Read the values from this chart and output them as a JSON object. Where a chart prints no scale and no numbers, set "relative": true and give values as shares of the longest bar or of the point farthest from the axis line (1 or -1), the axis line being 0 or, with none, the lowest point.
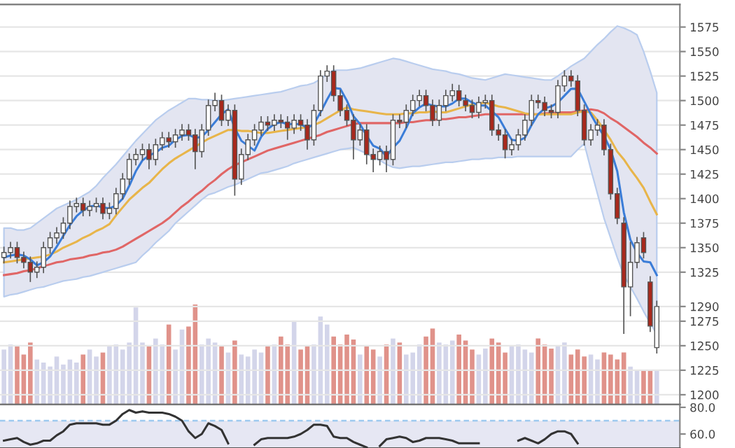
{
  "chart_data": [
    {
      "type": "candlestick",
      "categories": [
        null,
        null,
        null,
        null,
        null,
        null,
        null,
        null,
        null,
        null,
        null,
        null,
        null,
        null,
        null,
        null,
        null,
        null,
        null,
        null,
        null,
        null,
        null,
        null,
        null,
        null,
        null,
        null,
        null,
        null,
        null,
        null,
        null,
        null,
        null,
        null,
        null,
        null,
        null,
        null,
        null,
        null,
        null,
        null,
        null,
        null,
        null,
        null,
        null,
        null,
        null,
        null,
        null,
        null,
        null,
        null,
        null,
        null,
        null,
        null,
        null,
        null,
        null,
        null,
        null,
        null,
        null,
        null,
        null,
        null,
        null,
        null,
        null,
        null,
        null,
        null,
        null,
        null,
        null,
        null,
        null,
        null,
        null,
        null,
        null,
        null,
        null,
        null,
        null,
        null,
        null,
        null,
        null,
        null,
        null,
        null,
        null,
        null,
        null,
        null
      ],
      "ohlc": [
        [
          1340,
          1351,
          1334,
          1345
        ],
        [
          1345,
          1356,
          1339,
          1350
        ],
        [
          1350,
          1356,
          1334,
          1340
        ],
        [
          1340,
          1346,
          1329,
          1335
        ],
        [
          1335,
          1341,
          1315,
          1325
        ],
        [
          1325,
          1336,
          1319,
          1330
        ],
        [
          1330,
          1356,
          1324,
          1350
        ],
        [
          1350,
          1366,
          1344,
          1360
        ],
        [
          1360,
          1371,
          1354,
          1365
        ],
        [
          1365,
          1381,
          1359,
          1375
        ],
        [
          1375,
          1398,
          1369,
          1392
        ],
        [
          1392,
          1401,
          1386,
          1395
        ],
        [
          1395,
          1401,
          1382,
          1388
        ],
        [
          1388,
          1398,
          1382,
          1392
        ],
        [
          1392,
          1401,
          1386,
          1395
        ],
        [
          1395,
          1401,
          1379,
          1385
        ],
        [
          1385,
          1396,
          1379,
          1390
        ],
        [
          1390,
          1411,
          1384,
          1405
        ],
        [
          1405,
          1426,
          1399,
          1420
        ],
        [
          1420,
          1446,
          1414,
          1440
        ],
        [
          1440,
          1451,
          1434,
          1445
        ],
        [
          1445,
          1456,
          1439,
          1450
        ],
        [
          1450,
          1456,
          1430,
          1440
        ],
        [
          1440,
          1461,
          1434,
          1455
        ],
        [
          1455,
          1468,
          1449,
          1462
        ],
        [
          1462,
          1468,
          1452,
          1458
        ],
        [
          1458,
          1471,
          1452,
          1465
        ],
        [
          1465,
          1476,
          1459,
          1470
        ],
        [
          1470,
          1476,
          1459,
          1465
        ],
        [
          1465,
          1471,
          1430,
          1448
        ],
        [
          1448,
          1476,
          1442,
          1470
        ],
        [
          1470,
          1501,
          1464,
          1495
        ],
        [
          1495,
          1508,
          1489,
          1500
        ],
        [
          1500,
          1506,
          1474,
          1480
        ],
        [
          1480,
          1496,
          1474,
          1490
        ],
        [
          1490,
          1496,
          1403,
          1420
        ],
        [
          1420,
          1451,
          1414,
          1445
        ],
        [
          1445,
          1466,
          1439,
          1460
        ],
        [
          1460,
          1476,
          1454,
          1470
        ],
        [
          1470,
          1484,
          1464,
          1478
        ],
        [
          1478,
          1484,
          1469,
          1475
        ],
        [
          1475,
          1486,
          1469,
          1480
        ],
        [
          1480,
          1486,
          1472,
          1478
        ],
        [
          1478,
          1484,
          1460,
          1472
        ],
        [
          1472,
          1486,
          1466,
          1480
        ],
        [
          1480,
          1486,
          1469,
          1475
        ],
        [
          1475,
          1481,
          1450,
          1460
        ],
        [
          1460,
          1496,
          1454,
          1490
        ],
        [
          1490,
          1531,
          1484,
          1525
        ],
        [
          1525,
          1536,
          1519,
          1530
        ],
        [
          1530,
          1536,
          1499,
          1505
        ],
        [
          1505,
          1511,
          1484,
          1490
        ],
        [
          1490,
          1496,
          1474,
          1480
        ],
        [
          1480,
          1486,
          1440,
          1460
        ],
        [
          1460,
          1476,
          1454,
          1470
        ],
        [
          1470,
          1476,
          1435,
          1445
        ],
        [
          1445,
          1451,
          1427,
          1440
        ],
        [
          1440,
          1454,
          1434,
          1448
        ],
        [
          1448,
          1454,
          1427,
          1440
        ],
        [
          1440,
          1486,
          1434,
          1480
        ],
        [
          1480,
          1486,
          1472,
          1478
        ],
        [
          1478,
          1496,
          1472,
          1490
        ],
        [
          1490,
          1506,
          1484,
          1500
        ],
        [
          1500,
          1511,
          1494,
          1505
        ],
        [
          1505,
          1511,
          1489,
          1495
        ],
        [
          1495,
          1501,
          1474,
          1480
        ],
        [
          1480,
          1501,
          1474,
          1495
        ],
        [
          1495,
          1511,
          1489,
          1505
        ],
        [
          1505,
          1517,
          1499,
          1510
        ],
        [
          1510,
          1516,
          1494,
          1500
        ],
        [
          1500,
          1506,
          1489,
          1495
        ],
        [
          1495,
          1501,
          1482,
          1488
        ],
        [
          1488,
          1504,
          1482,
          1498
        ],
        [
          1498,
          1506,
          1492,
          1500
        ],
        [
          1500,
          1506,
          1464,
          1470
        ],
        [
          1470,
          1476,
          1459,
          1465
        ],
        [
          1465,
          1471,
          1441,
          1450
        ],
        [
          1450,
          1461,
          1444,
          1455
        ],
        [
          1455,
          1471,
          1449,
          1465
        ],
        [
          1465,
          1486,
          1459,
          1480
        ],
        [
          1480,
          1506,
          1474,
          1500
        ],
        [
          1500,
          1506,
          1492,
          1498
        ],
        [
          1498,
          1504,
          1484,
          1490
        ],
        [
          1490,
          1496,
          1482,
          1488
        ],
        [
          1488,
          1521,
          1482,
          1515
        ],
        [
          1515,
          1531,
          1509,
          1525
        ],
        [
          1525,
          1531,
          1514,
          1520
        ],
        [
          1520,
          1526,
          1484,
          1490
        ],
        [
          1490,
          1496,
          1454,
          1460
        ],
        [
          1460,
          1476,
          1454,
          1470
        ],
        [
          1470,
          1481,
          1464,
          1475
        ],
        [
          1475,
          1481,
          1444,
          1450
        ],
        [
          1450,
          1456,
          1399,
          1405
        ],
        [
          1405,
          1411,
          1374,
          1380
        ],
        [
          1375,
          1381,
          1262,
          1310
        ],
        [
          1310,
          1356,
          1280,
          1335
        ],
        [
          1335,
          1361,
          1329,
          1355
        ],
        [
          1360,
          1366,
          1339,
          1345
        ],
        [
          1315,
          1321,
          1264,
          1270
        ],
        [
          1248,
          1296,
          1242,
          1290
        ]
      ],
      "colors": [
        "#ffffff",
        "#ffffff",
        "#a8281c",
        "#a8281c",
        "#a8281c",
        "#ffffff",
        "#ffffff",
        "#ffffff",
        "#ffffff",
        "#ffffff",
        "#ffffff",
        "#ffffff",
        "#a8281c",
        "#ffffff",
        "#ffffff",
        "#a8281c",
        "#ffffff",
        "#ffffff",
        "#ffffff",
        "#ffffff",
        "#ffffff",
        "#ffffff",
        "#a8281c",
        "#ffffff",
        "#ffffff",
        "#a8281c",
        "#ffffff",
        "#ffffff",
        "#a8281c",
        "#a8281c",
        "#ffffff",
        "#ffffff",
        "#ffffff",
        "#a8281c",
        "#ffffff",
        "#a8281c",
        "#ffffff",
        "#ffffff",
        "#ffffff",
        "#ffffff",
        "#a8281c",
        "#ffffff",
        "#a8281c",
        "#a8281c",
        "#ffffff",
        "#a8281c",
        "#a8281c",
        "#ffffff",
        "#ffffff",
        "#ffffff",
        "#a8281c",
        "#a8281c",
        "#a8281c",
        "#a8281c",
        "#ffffff",
        "#a8281c",
        "#a8281c",
        "#ffffff",
        "#a8281c",
        "#ffffff",
        "#a8281c",
        "#ffffff",
        "#ffffff",
        "#ffffff",
        "#a8281c",
        "#a8281c",
        "#ffffff",
        "#ffffff",
        "#ffffff",
        "#a8281c",
        "#a8281c",
        "#a8281c",
        "#ffffff",
        "#ffffff",
        "#a8281c",
        "#a8281c",
        "#a8281c",
        "#ffffff",
        "#ffffff",
        "#ffffff",
        "#ffffff",
        "#a8281c",
        "#a8281c",
        "#a8281c",
        "#ffffff",
        "#ffffff",
        "#a8281c",
        "#a8281c",
        "#a8281c",
        "#ffffff",
        "#ffffff",
        "#a8281c",
        "#a8281c",
        "#a8281c",
        "#a8281c",
        "#ffffff",
        "#ffffff",
        "#a8281c",
        "#a8281c",
        "#ffffff"
      ],
      "series": [
        {
          "type": "line",
          "color": "#e06666",
          "values": [
            1322,
            1323,
            1324,
            1326,
            1327,
            1329,
            1331,
            1333,
            1335,
            1336,
            1338,
            1339,
            1340,
            1342,
            1343,
            1345,
            1346,
            1348,
            1351,
            1355,
            1359,
            1363,
            1367,
            1371,
            1375,
            1380,
            1386,
            1392,
            1397,
            1403,
            1408,
            1414,
            1419,
            1425,
            1430,
            1434,
            1437,
            1440,
            1443,
            1446,
            1449,
            1451,
            1453,
            1455,
            1457,
            1459,
            1461,
            1463,
            1465,
            1468,
            1470,
            1472,
            1474,
            1476,
            1477,
            1477,
            1477,
            1477,
            1477,
            1477,
            1477,
            1478,
            1478,
            1479,
            1480,
            1480,
            1481,
            1481,
            1482,
            1483,
            1483,
            1484,
            1485,
            1486,
            1486,
            1486,
            1486,
            1486,
            1486,
            1486,
            1486,
            1486,
            1487,
            1487,
            1488,
            1488,
            1488,
            1489,
            1490,
            1491,
            1490,
            1487,
            1482,
            1478,
            1473,
            1468,
            1463,
            1457,
            1452,
            1446
          ]
        },
        {
          "type": "line",
          "color": "#e8b54a",
          "values": [
            1335,
            1336,
            1337,
            1338,
            1339,
            1340,
            1341,
            1343,
            1346,
            1350,
            1353,
            1356,
            1360,
            1363,
            1367,
            1370,
            1374,
            1383,
            1391,
            1399,
            1405,
            1411,
            1416,
            1423,
            1430,
            1436,
            1441,
            1445,
            1449,
            1453,
            1457,
            1461,
            1464,
            1467,
            1470,
            1470,
            1469,
            1469,
            1468,
            1467,
            1467,
            1468,
            1469,
            1470,
            1471,
            1472,
            1473,
            1475,
            1478,
            1482,
            1486,
            1490,
            1493,
            1491,
            1490,
            1489,
            1488,
            1487,
            1486,
            1486,
            1486,
            1487,
            1487,
            1488,
            1488,
            1489,
            1488,
            1488,
            1490,
            1492,
            1494,
            1496,
            1497,
            1498,
            1496,
            1494,
            1493,
            1491,
            1489,
            1487,
            1486,
            1486,
            1486,
            1486,
            1486,
            1486,
            1486,
            1488,
            1489,
            1488,
            1480,
            1470,
            1460,
            1448,
            1440,
            1430,
            1421,
            1411,
            1397,
            1384
          ],
          "lower": [
            1300,
            1302,
            1303,
            1305,
            1307,
            1309,
            1310,
            1312,
            1314,
            1316,
            1317,
            1318,
            1320,
            1321,
            1323,
            1325,
            1327,
            1329,
            1331,
            1333,
            1335,
            1342,
            1348,
            1355,
            1361,
            1367,
            1375,
            1381,
            1387,
            1393,
            1399,
            1404,
            1406,
            1409,
            1412,
            1414,
            1417,
            1420,
            1423,
            1426,
            1427,
            1429,
            1431,
            1433,
            1436,
            1438,
            1440,
            1442,
            1444,
            1446,
            1448,
            1450,
            1451,
            1452,
            1449,
            1446,
            1442,
            1439,
            1435,
            1432,
            1431,
            1432,
            1433,
            1433,
            1434,
            1435,
            1436,
            1437,
            1437,
            1438,
            1439,
            1440,
            1440,
            1441,
            1441,
            1442,
            1442,
            1442,
            1443,
            1443,
            1443,
            1443,
            1443,
            1443,
            1443,
            1443,
            1443,
            1450,
            1456,
            1430,
            1405,
            1380,
            1360,
            1340,
            1322,
            1310,
            1298,
            1285,
            1273,
            1262
          ],
          "upper": [
            1370,
            1370,
            1368,
            1368,
            1370,
            1375,
            1380,
            1385,
            1390,
            1393,
            1396,
            1399,
            1403,
            1407,
            1413,
            1421,
            1428,
            1435,
            1443,
            1451,
            1459,
            1466,
            1473,
            1480,
            1485,
            1490,
            1494,
            1498,
            1502,
            1502,
            1501,
            1501,
            1500,
            1500,
            1501,
            1502,
            1503,
            1504,
            1505,
            1506,
            1507,
            1508,
            1509,
            1511,
            1513,
            1515,
            1516,
            1518,
            1522,
            1527,
            1531,
            1531,
            1531,
            1532,
            1533,
            1535,
            1537,
            1539,
            1541,
            1543,
            1542,
            1540,
            1538,
            1536,
            1534,
            1532,
            1531,
            1530,
            1528,
            1527,
            1525,
            1523,
            1522,
            1521,
            1523,
            1525,
            1527,
            1526,
            1525,
            1524,
            1523,
            1522,
            1521,
            1521,
            1525,
            1530,
            1535,
            1539,
            1543,
            1550,
            1557,
            1563,
            1570,
            1576,
            1574,
            1571,
            1567,
            1550,
            1530,
            1508
          ]
        },
        {
          "type": "line",
          "color": "#3b7dd8",
          "values": [
            1340,
            1342,
            1343,
            1342,
            1338,
            1332,
            1335,
            1341,
            1351,
            1362,
            1373,
            1382,
            1388,
            1392,
            1393,
            1391,
            1390,
            1393,
            1400,
            1413,
            1428,
            1439,
            1444,
            1447,
            1452,
            1454,
            1460,
            1464,
            1465,
            1462,
            1463,
            1470,
            1478,
            1486,
            1491,
            1472,
            1459,
            1454,
            1449,
            1463,
            1471,
            1476,
            1478,
            1476,
            1476,
            1476,
            1472,
            1476,
            1488,
            1501,
            1513,
            1512,
            1500,
            1484,
            1476,
            1464,
            1454,
            1451,
            1443,
            1452,
            1459,
            1472,
            1487,
            1493,
            1497,
            1495,
            1494,
            1494,
            1497,
            1502,
            1502,
            1498,
            1495,
            1495,
            1489,
            1483,
            1471,
            1460,
            1459,
            1462,
            1475,
            1486,
            1492,
            1494,
            1498,
            1505,
            1512,
            1512,
            1499,
            1486,
            1474,
            1464,
            1450,
            1428,
            1386,
            1358,
            1345,
            1336,
            1335,
            1322
          ]
        }
      ],
      "ylim": [
        1190,
        1598
      ],
      "yticks": [
        1200,
        1225,
        1250,
        1275,
        1290,
        1325,
        1350,
        1375,
        1400,
        1425,
        1450,
        1475,
        1500,
        1525,
        1550,
        1575
      ],
      "grid": "y"
    },
    {
      "type": "bar",
      "relative": true,
      "categories": [
        null,
        null,
        null,
        null,
        null,
        null,
        null,
        null,
        null,
        null,
        null,
        null,
        null,
        null,
        null,
        null,
        null,
        null,
        null,
        null,
        null,
        null,
        null,
        null,
        null,
        null,
        null,
        null,
        null,
        null,
        null,
        null,
        null,
        null,
        null,
        null,
        null,
        null,
        null,
        null,
        null,
        null,
        null,
        null,
        null,
        null,
        null,
        null,
        null,
        null,
        null,
        null,
        null,
        null,
        null,
        null,
        null,
        null,
        null,
        null,
        null,
        null,
        null,
        null,
        null,
        null,
        null,
        null,
        null,
        null,
        null,
        null,
        null,
        null,
        null,
        null,
        null,
        null,
        null,
        null,
        null,
        null,
        null,
        null,
        null,
        null,
        null,
        null,
        null,
        null,
        null,
        null,
        null,
        null,
        null,
        null,
        null,
        null,
        null,
        null
      ],
      "values": [
        0.55,
        0.6,
        0.58,
        0.5,
        0.62,
        0.45,
        0.42,
        0.38,
        0.48,
        0.4,
        0.45,
        0.42,
        0.5,
        0.55,
        0.48,
        0.52,
        0.58,
        0.6,
        0.55,
        0.62,
        0.97,
        0.62,
        0.58,
        0.66,
        0.6,
        0.8,
        0.55,
        0.75,
        0.78,
        1.0,
        0.6,
        0.66,
        0.62,
        0.58,
        0.52,
        0.64,
        0.5,
        0.48,
        0.55,
        0.52,
        0.58,
        0.6,
        0.68,
        0.6,
        0.84,
        0.55,
        0.58,
        0.6,
        0.88,
        0.8,
        0.68,
        0.6,
        0.7,
        0.65,
        0.5,
        0.58,
        0.55,
        0.48,
        0.6,
        0.66,
        0.62,
        0.5,
        0.52,
        0.6,
        0.68,
        0.76,
        0.62,
        0.6,
        0.64,
        0.7,
        0.64,
        0.55,
        0.5,
        0.56,
        0.66,
        0.62,
        0.52,
        0.58,
        0.6,
        0.55,
        0.52,
        0.66,
        0.6,
        0.56,
        0.58,
        0.62,
        0.5,
        0.55,
        0.48,
        0.5,
        0.45,
        0.52,
        0.5,
        0.45,
        0.52,
        0.38,
        0.34,
        0.35,
        0.35,
        0.35
      ],
      "colors": [
        "#d3d5ea",
        "#d3d5ea",
        "#e0928a",
        "#e0928a",
        "#e0928a",
        "#d3d5ea",
        "#d3d5ea",
        "#d3d5ea",
        "#d3d5ea",
        "#d3d5ea",
        "#d3d5ea",
        "#d3d5ea",
        "#e0928a",
        "#d3d5ea",
        "#d3d5ea",
        "#e0928a",
        "#d3d5ea",
        "#d3d5ea",
        "#d3d5ea",
        "#d3d5ea",
        "#d3d5ea",
        "#d3d5ea",
        "#e0928a",
        "#d3d5ea",
        "#d3d5ea",
        "#e0928a",
        "#d3d5ea",
        "#d3d5ea",
        "#e0928a",
        "#e0928a",
        "#d3d5ea",
        "#d3d5ea",
        "#d3d5ea",
        "#e0928a",
        "#d3d5ea",
        "#e0928a",
        "#d3d5ea",
        "#d3d5ea",
        "#d3d5ea",
        "#d3d5ea",
        "#e0928a",
        "#d3d5ea",
        "#e0928a",
        "#e0928a",
        "#d3d5ea",
        "#e0928a",
        "#e0928a",
        "#d3d5ea",
        "#d3d5ea",
        "#d3d5ea",
        "#e0928a",
        "#e0928a",
        "#e0928a",
        "#e0928a",
        "#d3d5ea",
        "#e0928a",
        "#e0928a",
        "#d3d5ea",
        "#e0928a",
        "#d3d5ea",
        "#e0928a",
        "#d3d5ea",
        "#d3d5ea",
        "#d3d5ea",
        "#e0928a",
        "#e0928a",
        "#d3d5ea",
        "#d3d5ea",
        "#d3d5ea",
        "#e0928a",
        "#e0928a",
        "#e0928a",
        "#d3d5ea",
        "#d3d5ea",
        "#e0928a",
        "#e0928a",
        "#e0928a",
        "#d3d5ea",
        "#d3d5ea",
        "#d3d5ea",
        "#d3d5ea",
        "#e0928a",
        "#e0928a",
        "#e0928a",
        "#d3d5ea",
        "#d3d5ea",
        "#e0928a",
        "#e0928a",
        "#e0928a",
        "#d3d5ea",
        "#d3d5ea",
        "#e0928a",
        "#e0928a",
        "#e0928a",
        "#e0928a",
        "#d3d5ea",
        "#d3d5ea",
        "#e0928a",
        "#e0928a",
        "#d3d5ea"
      ]
    },
    {
      "type": "line",
      "color": "#333333",
      "categories": [
        null,
        null,
        null,
        null,
        null,
        null,
        null,
        null,
        null,
        null,
        null,
        null,
        null,
        null,
        null,
        null,
        null,
        null,
        null,
        null,
        null,
        null,
        null,
        null,
        null,
        null,
        null,
        null,
        null,
        null,
        null,
        null,
        null,
        null,
        null,
        null,
        null,
        null,
        null,
        null,
        null,
        null,
        null,
        null,
        null,
        null,
        null,
        null,
        null,
        null,
        null,
        null,
        null,
        null,
        null,
        null,
        null,
        null,
        null,
        null,
        null,
        null,
        null,
        null,
        null,
        null,
        null,
        null,
        null,
        null,
        null,
        null,
        null,
        null,
        null,
        null,
        null,
        null,
        null,
        null,
        null,
        null,
        null,
        null,
        null,
        null,
        null,
        null,
        null,
        null,
        null,
        null,
        null,
        null,
        null,
        null,
        null,
        null,
        null,
        null
      ],
      "values": [
        55,
        56,
        57,
        54,
        52,
        53,
        55,
        55,
        59,
        62,
        67,
        68,
        68,
        68,
        68,
        67,
        67,
        70,
        75,
        78,
        76,
        77,
        76,
        76,
        76,
        75,
        73,
        70,
        62,
        57,
        60,
        68,
        66,
        63,
        53,
        null,
        null,
        null,
        52,
        56,
        57,
        57,
        57,
        57,
        58,
        60,
        63,
        67,
        67,
        66,
        58,
        57,
        57,
        54,
        52,
        50,
        null,
        51,
        56,
        57,
        58,
        57,
        54,
        55,
        57,
        57,
        57,
        56,
        55,
        53,
        53,
        53,
        53,
        null,
        null,
        null,
        null,
        null,
        55,
        57,
        55,
        53,
        56,
        60,
        62,
        62,
        60,
        53,
        null,
        null,
        null,
        null,
        null,
        null,
        null,
        null,
        null,
        null,
        null,
        null
      ],
      "ylim": [
        49.5,
        82.1
      ],
      "yticks": [
        {
          "value": 80,
          "label": "80.0"
        },
        {
          "value": 60,
          "label": "60.0"
        }
      ],
      "ref_lines": [
        {
          "axis": "y",
          "value": 70,
          "color": "#9ec9ef",
          "line_style": "dashed"
        }
      ],
      "bands": [
        {
          "axis": "y",
          "from": 49.5,
          "to": 70,
          "color": "#e6e7f3"
        }
      ]
    }
  ]
}
